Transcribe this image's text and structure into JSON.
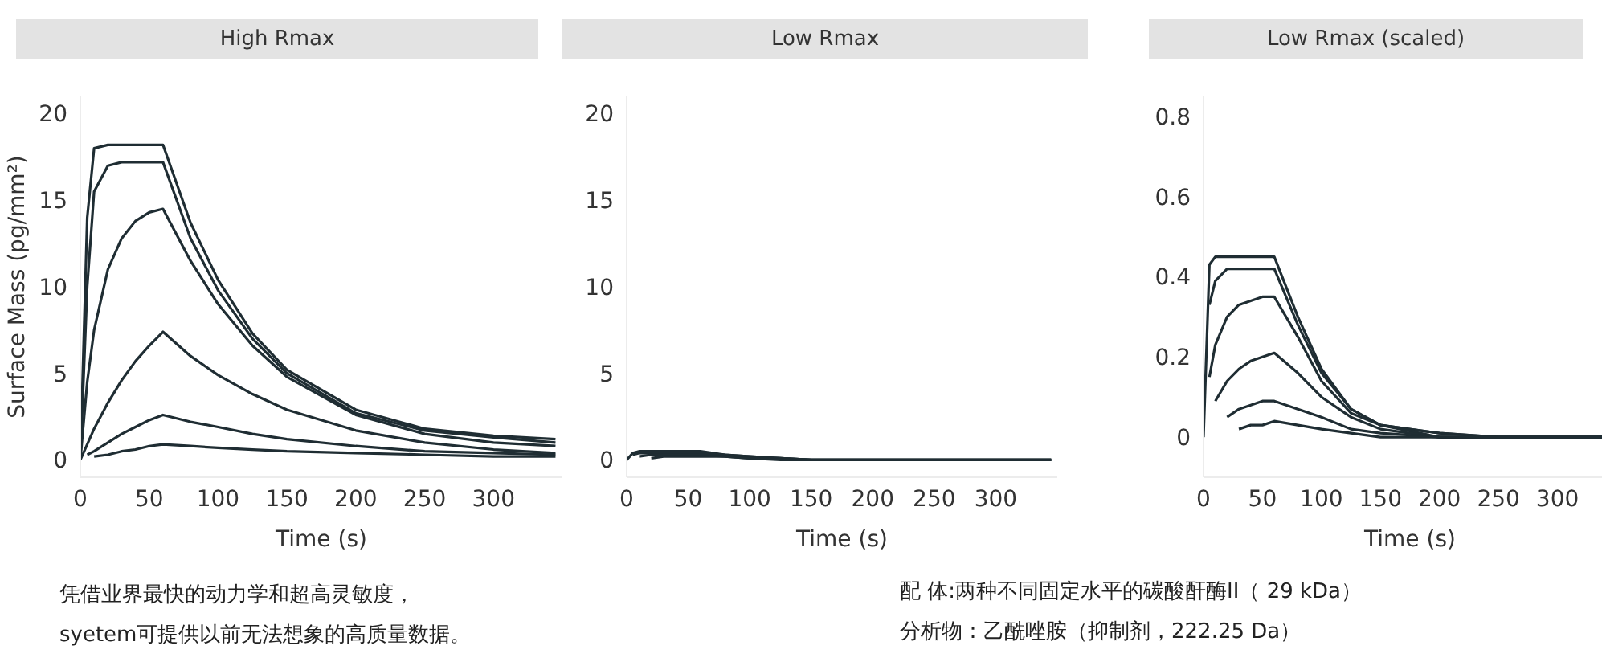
{
  "chart_data": [
    {
      "type": "line",
      "title": "High Rmax",
      "xlabel": "Time (s)",
      "ylabel": "Surface Mass (pg/mm²)",
      "x": [
        0,
        5,
        10,
        20,
        30,
        40,
        50,
        60,
        80,
        100,
        125,
        150,
        200,
        250,
        300,
        345
      ],
      "xlim": [
        0,
        350
      ],
      "xticks": [
        0,
        50,
        100,
        150,
        200,
        250,
        300
      ],
      "ylim": [
        -1,
        21
      ],
      "yticks": [
        0,
        5,
        10,
        15,
        20
      ],
      "grid": false,
      "legend": false,
      "marker": "none",
      "line_style": "solid",
      "annotations": [
        "凭借业界最快的动力学和超高灵敏度，",
        "syetem可提供以前无法想象的高质量数据。"
      ],
      "series": [
        {
          "color": "#1f2d33",
          "values": [
            0,
            14,
            18,
            18.2,
            18.2,
            18.2,
            18.2,
            18.2,
            13.7,
            10.4,
            7.3,
            5.2,
            2.9,
            1.8,
            1.4,
            1.2
          ]
        },
        {
          "color": "#1f2d33",
          "values": [
            0,
            10,
            15.5,
            17,
            17.2,
            17.2,
            17.2,
            17.2,
            12.8,
            9.8,
            7,
            5,
            2.7,
            1.7,
            1.3,
            1
          ]
        },
        {
          "color": "#1f2d33",
          "values": [
            0,
            4.5,
            7.5,
            11,
            12.8,
            13.8,
            14.3,
            14.5,
            11.5,
            9,
            6.6,
            4.8,
            2.6,
            1.5,
            1,
            0.8
          ]
        },
        {
          "color": "#1f2d33",
          "values": [
            0,
            0.9,
            1.8,
            3.3,
            4.6,
            5.7,
            6.6,
            7.4,
            6,
            4.9,
            3.8,
            2.9,
            1.7,
            1,
            0.6,
            0.4
          ]
        },
        {
          "color": "#1f2d33",
          "values": [
            null,
            0.3,
            0.5,
            1,
            1.5,
            1.9,
            2.3,
            2.6,
            2.2,
            1.9,
            1.5,
            1.2,
            0.8,
            0.5,
            0.4,
            0.3
          ]
        },
        {
          "color": "#1f2d33",
          "values": [
            null,
            null,
            0.2,
            0.3,
            0.5,
            0.6,
            0.8,
            0.9,
            0.8,
            0.7,
            0.6,
            0.5,
            0.4,
            0.3,
            0.2,
            0.2
          ]
        }
      ]
    },
    {
      "type": "line",
      "title": "Low Rmax",
      "xlabel": "Time (s)",
      "x": [
        0,
        5,
        10,
        20,
        30,
        40,
        50,
        60,
        80,
        100,
        125,
        150,
        200,
        250,
        300,
        345
      ],
      "xlim": [
        0,
        350
      ],
      "xticks": [
        0,
        50,
        100,
        150,
        200,
        250,
        300
      ],
      "ylim": [
        -1,
        21
      ],
      "yticks": [
        0,
        5,
        10,
        15,
        20
      ],
      "grid": false,
      "legend": false,
      "marker": "none",
      "line_style": "solid",
      "series": [
        {
          "color": "#1f2d33",
          "values": [
            0,
            0.4,
            0.5,
            0.5,
            0.5,
            0.5,
            0.5,
            0.5,
            0.3,
            0.2,
            0.1,
            0,
            0,
            0,
            0,
            0
          ]
        },
        {
          "color": "#1f2d33",
          "values": [
            null,
            0.3,
            0.4,
            0.4,
            0.4,
            0.4,
            0.4,
            0.4,
            0.3,
            0.2,
            0.1,
            0,
            0,
            0,
            0,
            0
          ]
        },
        {
          "color": "#1f2d33",
          "values": [
            null,
            null,
            0.2,
            0.3,
            0.3,
            0.3,
            0.3,
            0.3,
            0.2,
            0.1,
            0.1,
            0,
            0,
            0,
            0,
            0
          ]
        },
        {
          "color": "#1f2d33",
          "values": [
            null,
            null,
            null,
            0.1,
            0.2,
            0.2,
            0.2,
            0.2,
            0.2,
            0.1,
            0,
            0,
            0,
            0,
            0,
            0
          ]
        }
      ]
    },
    {
      "type": "line",
      "title": "Low Rmax (scaled)",
      "xlabel": "Time (s)",
      "x": [
        0,
        5,
        10,
        20,
        30,
        40,
        50,
        60,
        80,
        100,
        125,
        150,
        200,
        250,
        300,
        345
      ],
      "xlim": [
        0,
        350
      ],
      "xticks": [
        0,
        50,
        100,
        150,
        200,
        250,
        300
      ],
      "ylim": [
        -0.1,
        0.85
      ],
      "yticks": [
        0,
        0.2,
        0.4,
        0.6,
        0.8
      ],
      "grid": false,
      "legend": false,
      "marker": "none",
      "line_style": "solid",
      "annotations": [
        "配 体:两种不同固定水平的碳酸酐酶II（ 29 kDa）",
        "分析物：乙酰唑胺（抑制剂，222.25 Da）"
      ],
      "series": [
        {
          "color": "#1f2d33",
          "values": [
            0,
            0.43,
            0.45,
            0.45,
            0.45,
            0.45,
            0.45,
            0.45,
            0.3,
            0.17,
            0.07,
            0.03,
            0.01,
            0,
            0,
            0
          ]
        },
        {
          "color": "#1f2d33",
          "values": [
            null,
            0.33,
            0.39,
            0.42,
            0.42,
            0.42,
            0.42,
            0.42,
            0.28,
            0.16,
            0.07,
            0.03,
            0.01,
            0,
            0,
            0
          ]
        },
        {
          "color": "#1f2d33",
          "values": [
            null,
            0.15,
            0.23,
            0.3,
            0.33,
            0.34,
            0.35,
            0.35,
            0.25,
            0.14,
            0.06,
            0.03,
            0,
            0,
            0,
            0
          ]
        },
        {
          "color": "#1f2d33",
          "values": [
            null,
            null,
            0.09,
            0.14,
            0.17,
            0.19,
            0.2,
            0.21,
            0.16,
            0.1,
            0.05,
            0.02,
            0,
            0,
            0,
            0
          ]
        },
        {
          "color": "#1f2d33",
          "values": [
            null,
            null,
            null,
            0.05,
            0.07,
            0.08,
            0.09,
            0.09,
            0.07,
            0.05,
            0.02,
            0.01,
            0,
            0,
            0,
            0
          ]
        },
        {
          "color": "#1f2d33",
          "values": [
            null,
            null,
            null,
            null,
            0.02,
            0.03,
            0.03,
            0.04,
            0.03,
            0.02,
            0.01,
            0,
            0,
            0,
            0,
            0
          ]
        }
      ]
    }
  ]
}
